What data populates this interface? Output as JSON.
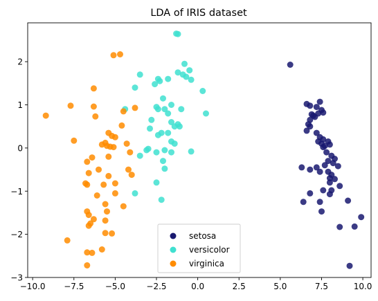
{
  "chart_data": {
    "type": "scatter",
    "title": "LDA of IRIS dataset",
    "xlabel": "",
    "ylabel": "",
    "xlim": [
      -10.3,
      10.5
    ],
    "ylim": [
      -3.0,
      2.9
    ],
    "xticks": [
      -10.0,
      -7.5,
      -5.0,
      -2.5,
      0.0,
      2.5,
      5.0,
      7.5,
      10.0
    ],
    "xtick_labels": [
      "−10.0",
      "−7.5",
      "−5.0",
      "−2.5",
      "0.0",
      "2.5",
      "5.0",
      "7.5",
      "10.0"
    ],
    "yticks": [
      -3,
      -2,
      -1,
      0,
      1,
      2
    ],
    "ytick_labels": [
      "−3",
      "−2",
      "−1",
      "0",
      "1",
      "2"
    ],
    "grid": false,
    "legend_position": "bottom-center",
    "series": [
      {
        "name": "setosa",
        "color": "#191970",
        "points": [
          [
            5.6,
            1.93
          ],
          [
            6.6,
            1.02
          ],
          [
            6.8,
            0.98
          ],
          [
            7.2,
            0.95
          ],
          [
            7.4,
            1.07
          ],
          [
            7.5,
            0.88
          ],
          [
            6.9,
            0.78
          ],
          [
            7.1,
            0.72
          ],
          [
            6.8,
            0.65
          ],
          [
            7.0,
            0.75
          ],
          [
            7.3,
            0.8
          ],
          [
            7.6,
            0.82
          ],
          [
            6.7,
            0.55
          ],
          [
            6.8,
            0.5
          ],
          [
            6.6,
            0.4
          ],
          [
            7.2,
            0.35
          ],
          [
            7.4,
            0.25
          ],
          [
            7.6,
            0.2
          ],
          [
            7.3,
            0.15
          ],
          [
            7.5,
            0.1
          ],
          [
            7.7,
            0.05
          ],
          [
            7.6,
            0.02
          ],
          [
            7.9,
            0.15
          ],
          [
            8.0,
            0.08
          ],
          [
            7.8,
            -0.1
          ],
          [
            8.1,
            -0.18
          ],
          [
            8.3,
            -0.25
          ],
          [
            7.9,
            -0.3
          ],
          [
            7.7,
            -0.4
          ],
          [
            8.2,
            -0.35
          ],
          [
            8.5,
            -0.42
          ],
          [
            7.4,
            -0.55
          ],
          [
            7.2,
            -0.45
          ],
          [
            6.8,
            -0.5
          ],
          [
            6.3,
            -0.45
          ],
          [
            7.9,
            -0.55
          ],
          [
            8.1,
            -0.62
          ],
          [
            8.0,
            -0.7
          ],
          [
            8.3,
            -0.72
          ],
          [
            8.0,
            -0.8
          ],
          [
            8.6,
            -0.88
          ],
          [
            8.1,
            -0.98
          ],
          [
            7.6,
            -0.98
          ],
          [
            6.8,
            -1.05
          ],
          [
            8.0,
            -1.07
          ],
          [
            6.4,
            -1.25
          ],
          [
            7.4,
            -1.25
          ],
          [
            9.1,
            -1.22
          ],
          [
            7.5,
            -1.47
          ],
          [
            9.9,
            -1.6
          ],
          [
            9.5,
            -1.82
          ],
          [
            8.6,
            -1.83
          ],
          [
            9.2,
            -2.73
          ]
        ]
      },
      {
        "name": "versicolor",
        "color": "#40e0d0",
        "points": [
          [
            -1.3,
            2.65
          ],
          [
            -1.2,
            2.64
          ],
          [
            -0.8,
            1.95
          ],
          [
            -1.2,
            1.75
          ],
          [
            -0.5,
            1.8
          ],
          [
            -0.9,
            1.7
          ],
          [
            -0.7,
            1.65
          ],
          [
            -0.4,
            1.58
          ],
          [
            -2.4,
            1.6
          ],
          [
            -2.3,
            1.55
          ],
          [
            -1.8,
            1.6
          ],
          [
            -2.6,
            1.48
          ],
          [
            -3.5,
            1.7
          ],
          [
            -3.8,
            1.4
          ],
          [
            0.3,
            1.32
          ],
          [
            -2.1,
            1.15
          ],
          [
            -1.6,
            1.0
          ],
          [
            -2.5,
            0.95
          ],
          [
            -2.4,
            0.9
          ],
          [
            -2.0,
            0.9
          ],
          [
            -1.0,
            0.9
          ],
          [
            0.5,
            0.8
          ],
          [
            -1.8,
            0.8
          ],
          [
            -2.8,
            0.65
          ],
          [
            -2.9,
            0.45
          ],
          [
            -1.6,
            0.6
          ],
          [
            -1.2,
            0.55
          ],
          [
            -1.1,
            0.5
          ],
          [
            -1.4,
            0.5
          ],
          [
            -2.2,
            0.35
          ],
          [
            -2.4,
            0.3
          ],
          [
            -1.8,
            0.35
          ],
          [
            -4.4,
            0.9
          ],
          [
            -1.6,
            0.15
          ],
          [
            -1.4,
            0.1
          ],
          [
            -3.1,
            -0.05
          ],
          [
            -3.0,
            -0.02
          ],
          [
            -2.5,
            -0.1
          ],
          [
            -2.0,
            -0.05
          ],
          [
            -1.6,
            -0.1
          ],
          [
            -0.4,
            -0.08
          ],
          [
            -3.5,
            -0.18
          ],
          [
            -2.1,
            -0.3
          ],
          [
            -2.0,
            -0.48
          ],
          [
            -2.5,
            -0.8
          ],
          [
            -3.8,
            -1.05
          ],
          [
            -2.2,
            -1.2
          ]
        ]
      },
      {
        "name": "virginica",
        "color": "#ff8c00",
        "points": [
          [
            -5.1,
            2.15
          ],
          [
            -4.7,
            2.17
          ],
          [
            -6.3,
            1.38
          ],
          [
            -7.7,
            0.98
          ],
          [
            -6.3,
            0.96
          ],
          [
            -9.2,
            0.75
          ],
          [
            -6.2,
            0.73
          ],
          [
            -4.5,
            0.85
          ],
          [
            -3.8,
            0.93
          ],
          [
            -4.6,
            0.52
          ],
          [
            -5.4,
            0.35
          ],
          [
            -5.2,
            0.28
          ],
          [
            -7.5,
            0.17
          ],
          [
            -5.6,
            0.12
          ],
          [
            -5.0,
            0.25
          ],
          [
            -5.8,
            0.08
          ],
          [
            -5.5,
            0.05
          ],
          [
            -5.1,
            0.02
          ],
          [
            -5.3,
            0.03
          ],
          [
            -4.3,
            0.1
          ],
          [
            -4.1,
            -0.1
          ],
          [
            -5.4,
            -0.2
          ],
          [
            -6.4,
            -0.22
          ],
          [
            -6.7,
            -0.32
          ],
          [
            -4.2,
            -0.5
          ],
          [
            -6.0,
            -0.5
          ],
          [
            -6.6,
            -0.58
          ],
          [
            -5.4,
            -0.65
          ],
          [
            -4.0,
            -0.62
          ],
          [
            -6.8,
            -0.82
          ],
          [
            -6.7,
            -0.85
          ],
          [
            -5.7,
            -0.85
          ],
          [
            -5.0,
            -0.82
          ],
          [
            -5.0,
            -1.05
          ],
          [
            -6.1,
            -1.1
          ],
          [
            -5.6,
            -1.3
          ],
          [
            -4.5,
            -1.35
          ],
          [
            -6.7,
            -1.47
          ],
          [
            -5.5,
            -1.47
          ],
          [
            -6.6,
            -1.55
          ],
          [
            -6.3,
            -1.65
          ],
          [
            -5.6,
            -1.68
          ],
          [
            -6.5,
            -1.75
          ],
          [
            -6.6,
            -1.8
          ],
          [
            -5.2,
            -1.98
          ],
          [
            -5.6,
            -1.97
          ],
          [
            -7.9,
            -2.14
          ],
          [
            -5.8,
            -2.35
          ],
          [
            -6.7,
            -2.42
          ],
          [
            -6.4,
            -2.43
          ],
          [
            -6.7,
            -2.72
          ]
        ]
      }
    ]
  }
}
